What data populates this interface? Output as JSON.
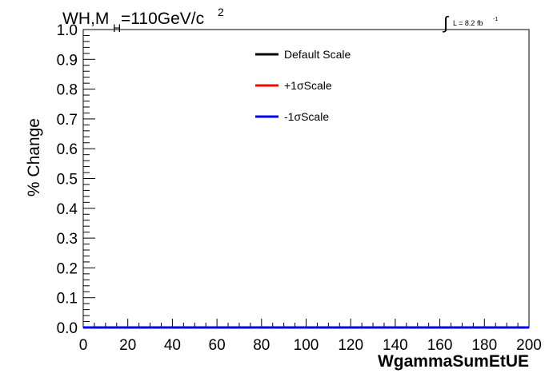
{
  "header": {
    "process": "WH,M",
    "mass_sub": "H",
    "mass_value": "=110GeV/c",
    "mass_sup": "2",
    "lumi_label": "L = 8.2 fb",
    "lumi_sup": "-1"
  },
  "chart_data": {
    "type": "line",
    "title": "",
    "xlabel": "WgammaSumEtUE",
    "ylabel": "% Change",
    "xlim": [
      0,
      200
    ],
    "ylim": [
      0.0,
      1.0
    ],
    "x_ticks": [
      "0",
      "20",
      "40",
      "60",
      "80",
      "100",
      "120",
      "140",
      "160",
      "180",
      "200"
    ],
    "y_ticks": [
      "0.0",
      "0.1",
      "0.2",
      "0.3",
      "0.4",
      "0.5",
      "0.6",
      "0.7",
      "0.8",
      "0.9",
      "1.0"
    ],
    "grid": false,
    "legend_position": "top-center",
    "series": [
      {
        "name": "Default Scale",
        "color": "#000000",
        "x": [
          0,
          200
        ],
        "y": [
          0.0,
          0.0
        ]
      },
      {
        "name": "+1σScale",
        "color": "#ff0000",
        "x": [
          0,
          200
        ],
        "y": [
          0.0,
          0.0
        ]
      },
      {
        "name": "-1σScale",
        "color": "#0000ff",
        "x": [
          0,
          200
        ],
        "y": [
          0.0,
          0.0
        ]
      }
    ]
  }
}
